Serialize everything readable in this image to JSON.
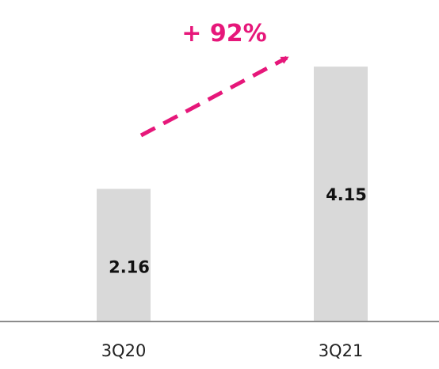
{
  "colors": {
    "bar": "#d9d9d9",
    "axis": "#8c8c8c",
    "accent": "#e6177a"
  },
  "annotation": {
    "growth_label": "+ 92%"
  },
  "chart_data": {
    "type": "bar",
    "categories": [
      "3Q20",
      "3Q21"
    ],
    "values": [
      2.16,
      4.15
    ],
    "data_labels": [
      "2.16",
      "4.15"
    ],
    "title": "",
    "xlabel": "",
    "ylabel": "",
    "ylim": [
      0,
      4.5
    ],
    "grid": false,
    "legend": "none"
  }
}
